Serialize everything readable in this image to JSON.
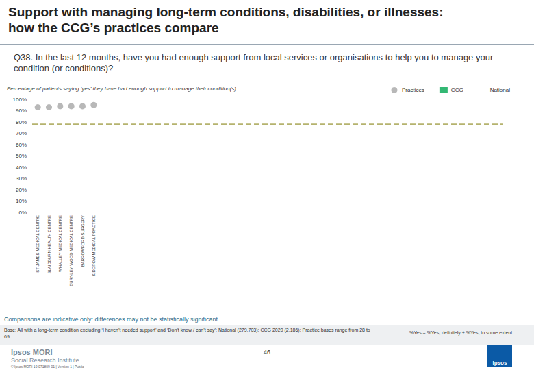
{
  "header": {
    "title": "Support with managing long-term conditions, disabilities, or illnesses: how the CCG’s practices compare",
    "question": "Q38. In the last 12 months, have you had enough support from local services or organisations to help you to manage your condition (or conditions)?"
  },
  "chart_data": {
    "type": "scatter",
    "subtitle": "Percentage of patients saying ‘yes’ they have had enough support to manage their condition(s)",
    "categories": [
      "ST JAMES MEDICAL CENTRE",
      "SLAIDBURN HEALTH CENTRE",
      "WHALLEY MEDICAL CENTRE",
      "BURNLEY WOOD MEDICAL CENTRE",
      "BARROWFORD SURGERY",
      "KIDDROW MEDICAL PRACTICE"
    ],
    "series": [
      {
        "name": "Practices",
        "color": "#a6a6a6",
        "marker": "circle",
        "values": [
          93,
          93,
          94,
          94,
          94,
          95
        ]
      },
      {
        "name": "CCG",
        "color": "#00a651",
        "marker": "square",
        "values": [
          null,
          null,
          null,
          null,
          null,
          null
        ]
      }
    ],
    "reference_lines": [
      {
        "name": "National",
        "value": 78,
        "color": "#b5b36e",
        "line_style": "dashed"
      }
    ],
    "ylim": [
      0,
      100
    ],
    "yticks": [
      {
        "value": 0,
        "label": "0%"
      },
      {
        "value": 10,
        "label": "10%"
      },
      {
        "value": 20,
        "label": "20%"
      },
      {
        "value": 30,
        "label": "30%"
      },
      {
        "value": 40,
        "label": "40%"
      },
      {
        "value": 50,
        "label": "50%"
      },
      {
        "value": 60,
        "label": "60%"
      },
      {
        "value": 70,
        "label": "70%"
      },
      {
        "value": 80,
        "label": "80%"
      },
      {
        "value": 90,
        "label": "90%"
      },
      {
        "value": 100,
        "label": "100%"
      }
    ],
    "grid": false,
    "legend": "top-right"
  },
  "footer": {
    "note": "Comparisons are indicative only: differences may not be statistically significant",
    "base": "Base: All with a long-term condition excluding ‘I haven’t needed support’ and ‘Don’t know / can’t say’: National (279,703); CCG 2020 (2,186); Practice bases range from 28 to 69",
    "definition": "%Yes = %Yes, definitely + %Yes, to some extent",
    "page": "46",
    "brand": "Ipsos MORI",
    "institute": "Social Research Institute",
    "copyright": "© Ipsos MORI    19-071809-01 | Version 1 | Public",
    "logo": "Ipsos"
  }
}
